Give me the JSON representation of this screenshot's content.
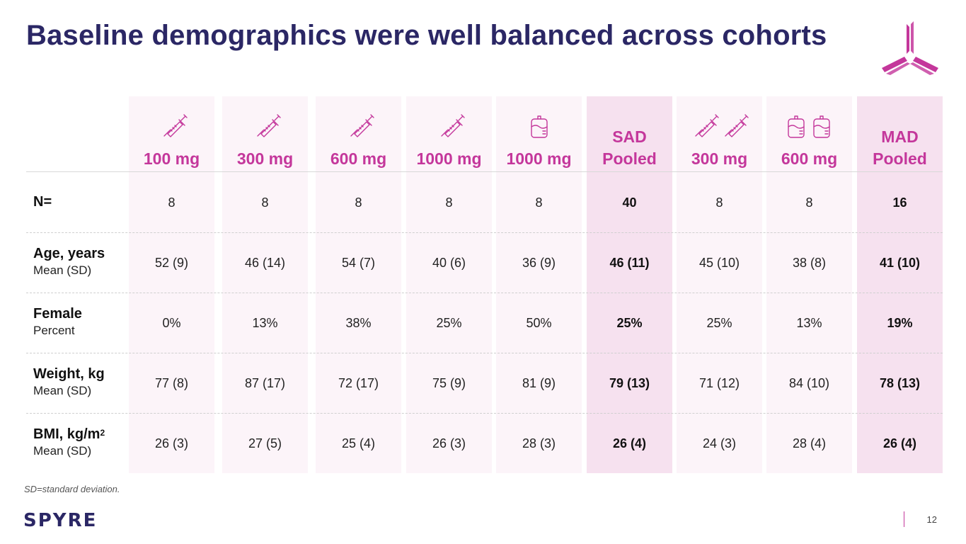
{
  "title": "Baseline demographics were well balanced across cohorts",
  "columns": [
    {
      "label_top": "",
      "label": "100 mg",
      "icon": "syringe-icon",
      "pooled": false
    },
    {
      "label_top": "",
      "label": "300 mg",
      "icon": "syringe-icon",
      "pooled": false
    },
    {
      "label_top": "",
      "label": "600 mg",
      "icon": "syringe-icon",
      "pooled": false
    },
    {
      "label_top": "",
      "label": "1000 mg",
      "icon": "syringe-icon",
      "pooled": false
    },
    {
      "label_top": "",
      "label": "1000 mg",
      "icon": "iv-bag-icon",
      "pooled": false
    },
    {
      "label_top": "SAD",
      "label": "Pooled",
      "icon": "",
      "pooled": true
    },
    {
      "label_top": "",
      "label": "300 mg",
      "icon": "double-syringe-icon",
      "pooled": false
    },
    {
      "label_top": "",
      "label": "600 mg",
      "icon": "double-iv-bag-icon",
      "pooled": false
    },
    {
      "label_top": "MAD",
      "label": "Pooled",
      "icon": "",
      "pooled": true
    }
  ],
  "rows": [
    {
      "label": "N=",
      "sub": "",
      "sup": "",
      "values": [
        "8",
        "8",
        "8",
        "8",
        "8",
        "40",
        "8",
        "8",
        "16"
      ]
    },
    {
      "label": "Age, years",
      "sub": "Mean (SD)",
      "sup": "",
      "values": [
        "52 (9)",
        "46 (14)",
        "54 (7)",
        "40 (6)",
        "36 (9)",
        "46 (11)",
        "45 (10)",
        "38 (8)",
        "41 (10)"
      ]
    },
    {
      "label": "Female",
      "sub": "Percent",
      "sup": "",
      "values": [
        "0%",
        "13%",
        "38%",
        "25%",
        "50%",
        "25%",
        "25%",
        "13%",
        "19%"
      ]
    },
    {
      "label": "Weight, kg",
      "sub": "Mean (SD)",
      "sup": "",
      "values": [
        "77 (8)",
        "87 (17)",
        "72 (17)",
        "75 (9)",
        "81 (9)",
        "79 (13)",
        "71 (12)",
        "84 (10)",
        "78 (13)"
      ]
    },
    {
      "label": "BMI, kg/m",
      "sub": "Mean (SD)",
      "sup": "2",
      "values": [
        "26 (3)",
        "27 (5)",
        "25 (4)",
        "26 (3)",
        "28 (3)",
        "26 (4)",
        "24 (3)",
        "28 (4)",
        "26 (4)"
      ]
    }
  ],
  "footnote": "SD=standard deviation.",
  "brand": "SPYRE",
  "page_number": "12",
  "colors": {
    "accent": "#c4379b",
    "title": "#2b2765"
  }
}
